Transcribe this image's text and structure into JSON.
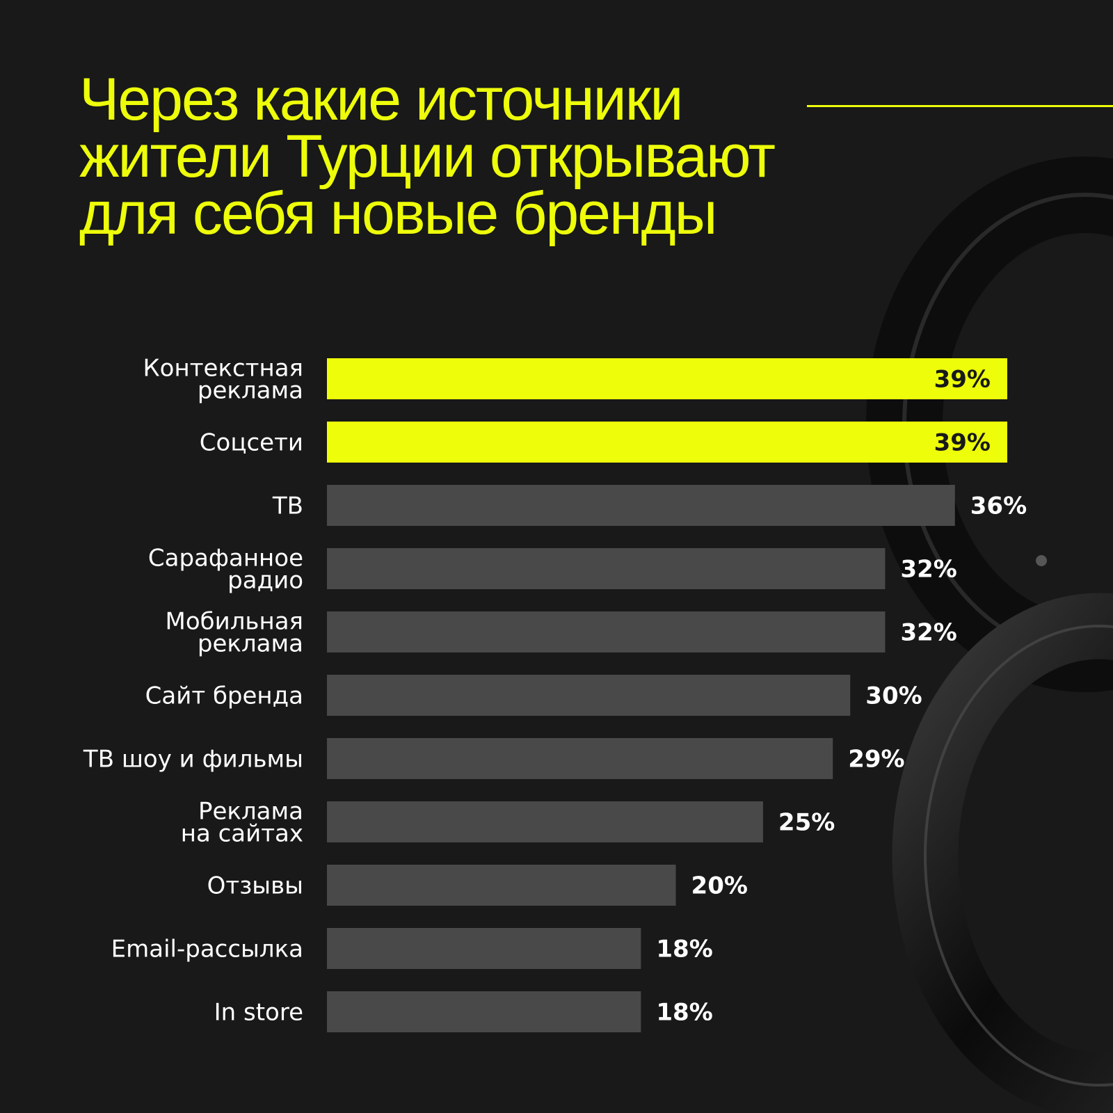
{
  "title": "Через какие источники жители Турции открывают для себя новые бренды",
  "colors": {
    "background": "#181918",
    "accent": "#eefe0a",
    "bar": "#484948",
    "label": "#ffffff",
    "value_on_accent": "#181918"
  },
  "chart_data": {
    "type": "bar",
    "orientation": "horizontal",
    "categories": [
      [
        "Контекстная",
        "реклама"
      ],
      [
        "Соцсети"
      ],
      [
        "ТВ"
      ],
      [
        "Сарафанное",
        "радио"
      ],
      [
        "Мобильная",
        "реклама"
      ],
      [
        "Сайт бренда"
      ],
      [
        "ТВ шоу и фильмы"
      ],
      [
        "Реклама",
        "на сайтах"
      ],
      [
        "Отзывы"
      ],
      [
        "Email-рассылка"
      ],
      [
        "In store"
      ]
    ],
    "values": [
      39,
      39,
      36,
      32,
      32,
      30,
      29,
      25,
      20,
      18,
      18
    ],
    "value_labels": [
      "39%",
      "39%",
      "36%",
      "32%",
      "32%",
      "30%",
      "29%",
      "25%",
      "20%",
      "18%",
      "18%"
    ],
    "highlighted": [
      true,
      true,
      false,
      false,
      false,
      false,
      false,
      false,
      false,
      false,
      false
    ],
    "unit": "%",
    "grid": false,
    "legend": "none"
  }
}
